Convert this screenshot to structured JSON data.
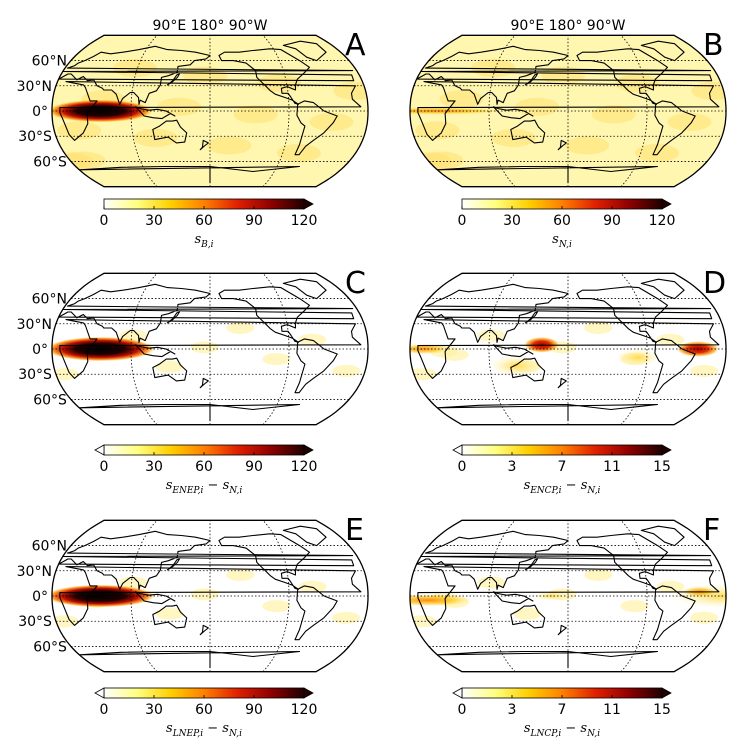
{
  "figure": {
    "lon_header_labels": [
      "90°E",
      "180°",
      "90°W"
    ],
    "lat_labels": [
      "60°N",
      "30°N",
      "0°",
      "30°S",
      "60°S"
    ],
    "panels": [
      {
        "letter": "A",
        "colorbar_label": "s_{B,i}",
        "colorbar_label_main": "s",
        "colorbar_label_sub": "B,i",
        "ticks": [
          "0",
          "30",
          "60",
          "90",
          "120"
        ],
        "extend": "max",
        "show_lon_header": true
      },
      {
        "letter": "B",
        "colorbar_label": "s_{N,i}",
        "colorbar_label_main": "s",
        "colorbar_label_sub": "N,i",
        "ticks": [
          "0",
          "30",
          "60",
          "90",
          "120"
        ],
        "extend": "max",
        "show_lon_header": true
      },
      {
        "letter": "C",
        "colorbar_label": "s_{ENEP,i} − s_{N,i}",
        "colorbar_label_main": "s",
        "colorbar_label_sub": "ENEP,i",
        "colorbar_label_main2": "s",
        "colorbar_label_sub2": "N,i",
        "ticks": [
          "0",
          "30",
          "60",
          "90",
          "120"
        ],
        "extend": "both",
        "show_lon_header": false
      },
      {
        "letter": "D",
        "colorbar_label": "s_{ENCP,i} − s_{N,i}",
        "colorbar_label_main": "s",
        "colorbar_label_sub": "ENCP,i",
        "colorbar_label_main2": "s",
        "colorbar_label_sub2": "N,i",
        "ticks": [
          "0",
          "3",
          "7",
          "11",
          "15"
        ],
        "extend": "both",
        "show_lon_header": false
      },
      {
        "letter": "E",
        "colorbar_label": "s_{LNEP,i} − s_{N,i}",
        "colorbar_label_main": "s",
        "colorbar_label_sub": "LNEP,i",
        "colorbar_label_main2": "s",
        "colorbar_label_sub2": "N,i",
        "ticks": [
          "0",
          "30",
          "60",
          "90",
          "120"
        ],
        "extend": "both",
        "show_lon_header": false
      },
      {
        "letter": "F",
        "colorbar_label": "s_{LNCP,i} − s_{N,i}",
        "colorbar_label_main": "s",
        "colorbar_label_sub": "LNCP,i",
        "colorbar_label_main2": "s",
        "colorbar_label_sub2": "N,i",
        "ticks": [
          "0",
          "3",
          "7",
          "11",
          "15"
        ],
        "extend": "both",
        "show_lon_header": false
      }
    ],
    "colormap": [
      "#ffffff",
      "#ffff80",
      "#ffd000",
      "#ff8000",
      "#e02000",
      "#900000",
      "#200000"
    ],
    "map_background": "#fff6b0"
  }
}
